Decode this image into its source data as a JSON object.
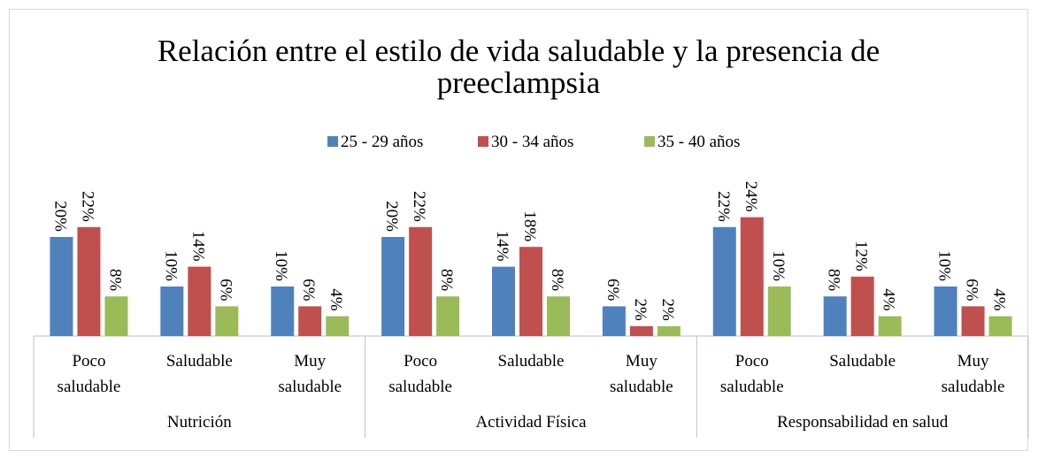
{
  "chart_data": {
    "type": "bar",
    "title": "Relación entre el estilo de vida saludable y la presencia de preeclampsia",
    "groups": [
      {
        "name": "Nutrición",
        "categories": [
          "Poco saludable",
          "Saludable",
          "Muy saludable"
        ]
      },
      {
        "name": "Actividad Física",
        "categories": [
          "Poco saludable",
          "Saludable",
          "Muy saludable"
        ]
      },
      {
        "name": "Responsabilidad en salud",
        "categories": [
          "Poco saludable",
          "Saludable",
          "Muy saludable"
        ]
      }
    ],
    "series": [
      {
        "name": "25 - 29 años",
        "color": "#4f81bd",
        "values": [
          20,
          10,
          10,
          20,
          14,
          6,
          22,
          8,
          10
        ],
        "value_labels": [
          "20%",
          "10%",
          "10%",
          "20%",
          "14%",
          "6%",
          "22%",
          "8%",
          "10%"
        ]
      },
      {
        "name": "30 - 34 años",
        "color": "#c0504d",
        "values": [
          22,
          14,
          6,
          22,
          18,
          2,
          24,
          12,
          6
        ],
        "value_labels": [
          "22%",
          "14%",
          "6%",
          "22%",
          "18%",
          "2%",
          "24%",
          "12%",
          "6%"
        ]
      },
      {
        "name": "35 - 40 años",
        "color": "#9bbb59",
        "values": [
          8,
          6,
          4,
          8,
          8,
          2,
          10,
          4,
          4
        ],
        "value_labels": [
          "8%",
          "6%",
          "4%",
          "8%",
          "8%",
          "2%",
          "10%",
          "4%",
          "4%"
        ]
      }
    ],
    "ylim": [
      0,
      25
    ],
    "legend": "top"
  }
}
